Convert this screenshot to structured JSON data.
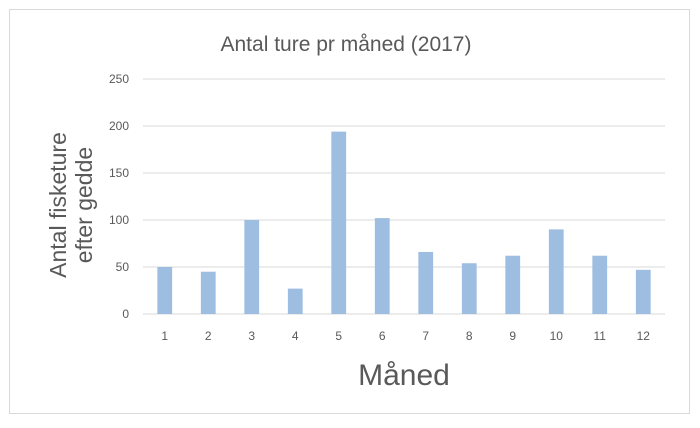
{
  "chart_data": {
    "type": "bar",
    "title": "Antal ture pr måned (2017)",
    "xlabel": "Måned",
    "ylabel": [
      "Antal fisketure",
      "efter gedde"
    ],
    "categories": [
      "1",
      "2",
      "3",
      "4",
      "5",
      "6",
      "7",
      "8",
      "9",
      "10",
      "11",
      "12"
    ],
    "values": [
      50,
      45,
      100,
      27,
      194,
      102,
      66,
      54,
      62,
      90,
      62,
      47
    ],
    "ylim": [
      0,
      250
    ],
    "yticks": [
      "0",
      "50",
      "100",
      "150",
      "200",
      "250"
    ],
    "grid": true,
    "legend": "none",
    "bar_color": "#9dbde1",
    "grid_color": "#d9d9d9"
  }
}
